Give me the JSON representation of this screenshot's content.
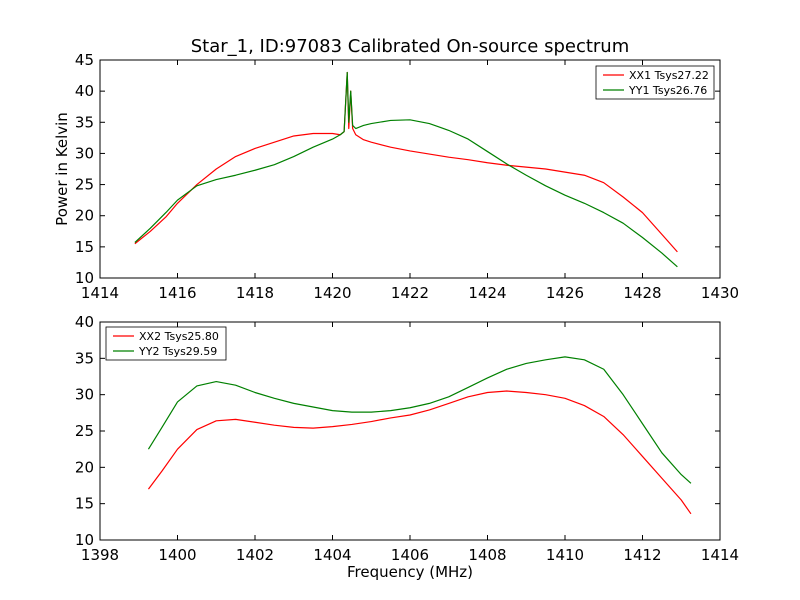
{
  "chart_data": [
    {
      "type": "line",
      "title": "Star_1, ID:97083 Calibrated On-source spectrum",
      "xlabel": "",
      "ylabel": "Power in Kelvin",
      "xlim": [
        1414,
        1430
      ],
      "ylim": [
        10,
        45
      ],
      "xticks": [
        1414,
        1416,
        1418,
        1420,
        1422,
        1424,
        1426,
        1428,
        1430
      ],
      "yticks": [
        10,
        15,
        20,
        25,
        30,
        35,
        40,
        45
      ],
      "legend_position": "top-right",
      "series": [
        {
          "name": "XX1 Tsys27.22",
          "color": "#ff0000",
          "x": [
            1414.9,
            1415.3,
            1415.7,
            1416.0,
            1416.5,
            1417.0,
            1417.5,
            1418.0,
            1418.5,
            1419.0,
            1419.5,
            1420.0,
            1420.2,
            1420.3,
            1420.38,
            1420.42,
            1420.47,
            1420.52,
            1420.6,
            1420.8,
            1421.0,
            1421.5,
            1422.0,
            1422.5,
            1423.0,
            1423.5,
            1424.0,
            1424.5,
            1425.0,
            1425.5,
            1426.0,
            1426.5,
            1427.0,
            1427.5,
            1428.0,
            1428.5,
            1428.9
          ],
          "y": [
            15.5,
            17.5,
            19.8,
            22.0,
            25.0,
            27.5,
            29.5,
            30.8,
            31.8,
            32.8,
            33.2,
            33.2,
            33.0,
            33.5,
            43.0,
            34.0,
            40.0,
            34.0,
            33.0,
            32.2,
            31.8,
            31.0,
            30.4,
            29.9,
            29.4,
            29.0,
            28.5,
            28.1,
            27.8,
            27.5,
            27.0,
            26.5,
            25.3,
            23.0,
            20.5,
            17.0,
            14.2
          ]
        },
        {
          "name": "YY1 Tsys26.76",
          "color": "#008000",
          "x": [
            1414.9,
            1415.3,
            1415.7,
            1416.0,
            1416.5,
            1417.0,
            1417.5,
            1418.0,
            1418.5,
            1419.0,
            1419.5,
            1420.0,
            1420.2,
            1420.3,
            1420.38,
            1420.42,
            1420.47,
            1420.52,
            1420.6,
            1420.8,
            1421.0,
            1421.5,
            1422.0,
            1422.5,
            1423.0,
            1423.5,
            1424.0,
            1424.5,
            1425.0,
            1425.5,
            1426.0,
            1426.5,
            1427.0,
            1427.5,
            1428.0,
            1428.5,
            1428.9
          ],
          "y": [
            15.7,
            18.0,
            20.5,
            22.5,
            24.8,
            25.8,
            26.5,
            27.3,
            28.2,
            29.5,
            31.0,
            32.3,
            33.0,
            33.5,
            43.0,
            35.0,
            40.0,
            34.5,
            34.0,
            34.5,
            34.8,
            35.3,
            35.4,
            34.8,
            33.7,
            32.3,
            30.3,
            28.3,
            26.5,
            24.8,
            23.3,
            22.0,
            20.5,
            18.8,
            16.5,
            14.0,
            11.8
          ]
        }
      ]
    },
    {
      "type": "line",
      "title": "",
      "xlabel": "Frequency (MHz)",
      "ylabel": "",
      "xlim": [
        1398,
        1414
      ],
      "ylim": [
        10,
        40
      ],
      "xticks": [
        1398,
        1400,
        1402,
        1404,
        1406,
        1408,
        1410,
        1412,
        1414
      ],
      "yticks": [
        10,
        15,
        20,
        25,
        30,
        35,
        40
      ],
      "legend_position": "top-left",
      "series": [
        {
          "name": "XX2 Tsys25.80",
          "color": "#ff0000",
          "x": [
            1399.25,
            1399.6,
            1400.0,
            1400.5,
            1401.0,
            1401.5,
            1402.0,
            1402.5,
            1403.0,
            1403.5,
            1404.0,
            1404.5,
            1405.0,
            1405.5,
            1406.0,
            1406.5,
            1407.0,
            1407.5,
            1408.0,
            1408.5,
            1409.0,
            1409.5,
            1410.0,
            1410.5,
            1411.0,
            1411.5,
            1412.0,
            1412.5,
            1413.0,
            1413.25
          ],
          "y": [
            17.0,
            19.5,
            22.5,
            25.2,
            26.4,
            26.6,
            26.2,
            25.8,
            25.5,
            25.4,
            25.6,
            25.9,
            26.3,
            26.8,
            27.2,
            27.9,
            28.8,
            29.7,
            30.3,
            30.5,
            30.3,
            30.0,
            29.5,
            28.5,
            27.0,
            24.5,
            21.5,
            18.5,
            15.5,
            13.6
          ]
        },
        {
          "name": "YY2 Tsys29.59",
          "color": "#008000",
          "x": [
            1399.25,
            1399.6,
            1400.0,
            1400.5,
            1401.0,
            1401.5,
            1402.0,
            1402.5,
            1403.0,
            1403.5,
            1404.0,
            1404.5,
            1405.0,
            1405.5,
            1406.0,
            1406.5,
            1407.0,
            1407.5,
            1408.0,
            1408.5,
            1409.0,
            1409.5,
            1410.0,
            1410.5,
            1411.0,
            1411.5,
            1412.0,
            1412.5,
            1413.0,
            1413.25
          ],
          "y": [
            22.5,
            25.5,
            29.0,
            31.2,
            31.8,
            31.3,
            30.3,
            29.5,
            28.8,
            28.3,
            27.8,
            27.6,
            27.6,
            27.8,
            28.2,
            28.8,
            29.7,
            31.0,
            32.3,
            33.5,
            34.3,
            34.8,
            35.2,
            34.8,
            33.5,
            30.0,
            26.0,
            22.0,
            19.0,
            17.8
          ]
        }
      ]
    }
  ]
}
